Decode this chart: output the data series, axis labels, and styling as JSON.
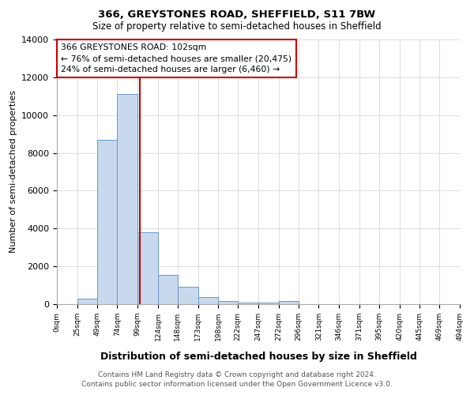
{
  "title": "366, GREYSTONES ROAD, SHEFFIELD, S11 7BW",
  "subtitle": "Size of property relative to semi-detached houses in Sheffield",
  "xlabel": "Distribution of semi-detached houses by size in Sheffield",
  "ylabel": "Number of semi-detached properties",
  "bin_edges": [
    0,
    25,
    49,
    74,
    99,
    124,
    148,
    173,
    198,
    222,
    247,
    272,
    296,
    321,
    346,
    371,
    395,
    420,
    445,
    469,
    494
  ],
  "bin_labels": [
    "0sqm",
    "25sqm",
    "49sqm",
    "74sqm",
    "99sqm",
    "124sqm",
    "148sqm",
    "173sqm",
    "198sqm",
    "222sqm",
    "247sqm",
    "272sqm",
    "296sqm",
    "321sqm",
    "346sqm",
    "371sqm",
    "395sqm",
    "420sqm",
    "445sqm",
    "469sqm",
    "494sqm"
  ],
  "bar_heights": [
    0,
    300,
    8700,
    11100,
    3800,
    1550,
    900,
    380,
    175,
    100,
    80,
    150,
    0,
    0,
    0,
    0,
    0,
    0,
    0,
    0
  ],
  "bar_color": "#c8d9ee",
  "bar_edge_color": "#6699cc",
  "property_value": 102,
  "annotation_title": "366 GREYSTONES ROAD: 102sqm",
  "annotation_line1": "← 76% of semi-detached houses are smaller (20,475)",
  "annotation_line2": "24% of semi-detached houses are larger (6,460) →",
  "annotation_box_color": "#ffffff",
  "annotation_box_edge_color": "#cc0000",
  "vline_color": "#cc0000",
  "ylim": [
    0,
    14000
  ],
  "yticks": [
    0,
    2000,
    4000,
    6000,
    8000,
    10000,
    12000,
    14000
  ],
  "grid_color": "#dddddd",
  "bg_color": "#ffffff",
  "footnote1": "Contains HM Land Registry data © Crown copyright and database right 2024.",
  "footnote2": "Contains public sector information licensed under the Open Government Licence v3.0."
}
